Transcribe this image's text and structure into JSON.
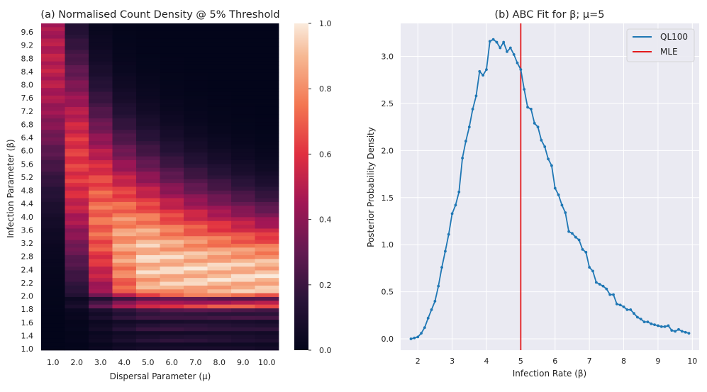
{
  "chart_data": [
    {
      "type": "heatmap",
      "title": "(a) Normalised Count Density @ 5% Threshold",
      "xlabel": "Dispersal Parameter (μ)",
      "ylabel": "Infection Parameter (β)",
      "x_ticks": [
        "1.0",
        "2.0",
        "3.0",
        "4.0",
        "5.0",
        "6.0",
        "7.0",
        "8.0",
        "9.0",
        "10.0"
      ],
      "y_ticks": [
        "1.0",
        "1.4",
        "1.6",
        "1.8",
        "2.0",
        "2.2",
        "2.4",
        "2.8",
        "3.2",
        "3.6",
        "4.0",
        "4.4",
        "4.8",
        "5.2",
        "5.6",
        "6.0",
        "6.4",
        "6.8",
        "7.2",
        "7.6",
        "8.0",
        "8.4",
        "8.8",
        "9.2",
        "9.6"
      ],
      "colorbar": {
        "min": 0.0,
        "max": 1.0,
        "ticks": [
          "0.0",
          "0.2",
          "0.4",
          "0.6",
          "0.8",
          "1.0"
        ]
      },
      "colormap": "rocket"
    },
    {
      "type": "line",
      "title": "(b) ABC Fit for β; μ=5",
      "xlabel": "Infection Rate (β)",
      "ylabel": "Posterior Probability Density",
      "xlim": [
        1.5,
        10.2
      ],
      "ylim": [
        -0.12,
        3.35
      ],
      "x_ticks": [
        2,
        3,
        4,
        5,
        6,
        7,
        8,
        9,
        10
      ],
      "y_ticks": [
        "0.0",
        "0.5",
        "1.0",
        "1.5",
        "2.0",
        "2.5",
        "3.0"
      ],
      "grid": true,
      "legend_position": "top-right",
      "series": [
        {
          "name": "QL100",
          "color": "#1f77b4",
          "x": [
            1.8,
            1.9,
            2.0,
            2.1,
            2.2,
            2.3,
            2.4,
            2.5,
            2.6,
            2.7,
            2.8,
            2.9,
            3.0,
            3.1,
            3.2,
            3.3,
            3.4,
            3.5,
            3.6,
            3.7,
            3.8,
            3.9,
            4.0,
            4.1,
            4.2,
            4.3,
            4.4,
            4.5,
            4.6,
            4.7,
            4.8,
            4.9,
            5.0,
            5.1,
            5.2,
            5.3,
            5.4,
            5.5,
            5.6,
            5.7,
            5.8,
            5.9,
            6.0,
            6.1,
            6.2,
            6.3,
            6.4,
            6.5,
            6.6,
            6.7,
            6.8,
            6.9,
            7.0,
            7.1,
            7.2,
            7.3,
            7.4,
            7.5,
            7.6,
            7.7,
            7.8,
            7.9,
            8.0,
            8.1,
            8.2,
            8.3,
            8.4,
            8.5,
            8.6,
            8.7,
            8.8,
            8.9,
            9.0,
            9.1,
            9.2,
            9.3,
            9.4,
            9.5,
            9.6,
            9.7,
            9.8,
            9.9
          ],
          "values": [
            0.0,
            0.01,
            0.02,
            0.06,
            0.12,
            0.22,
            0.31,
            0.4,
            0.56,
            0.76,
            0.93,
            1.11,
            1.33,
            1.42,
            1.56,
            1.92,
            2.1,
            2.25,
            2.44,
            2.58,
            2.84,
            2.8,
            2.86,
            3.16,
            3.18,
            3.15,
            3.09,
            3.15,
            3.05,
            3.09,
            3.02,
            2.93,
            2.86,
            2.65,
            2.46,
            2.44,
            2.29,
            2.25,
            2.11,
            2.04,
            1.91,
            1.84,
            1.6,
            1.53,
            1.42,
            1.34,
            1.14,
            1.12,
            1.08,
            1.05,
            0.95,
            0.92,
            0.76,
            0.72,
            0.6,
            0.58,
            0.56,
            0.53,
            0.47,
            0.47,
            0.37,
            0.36,
            0.34,
            0.31,
            0.31,
            0.27,
            0.23,
            0.21,
            0.18,
            0.18,
            0.16,
            0.15,
            0.14,
            0.13,
            0.13,
            0.14,
            0.09,
            0.08,
            0.1,
            0.08,
            0.07,
            0.06
          ]
        },
        {
          "name": "MLE",
          "color": "#e31a1c",
          "vline_x": 5.0
        }
      ]
    }
  ]
}
